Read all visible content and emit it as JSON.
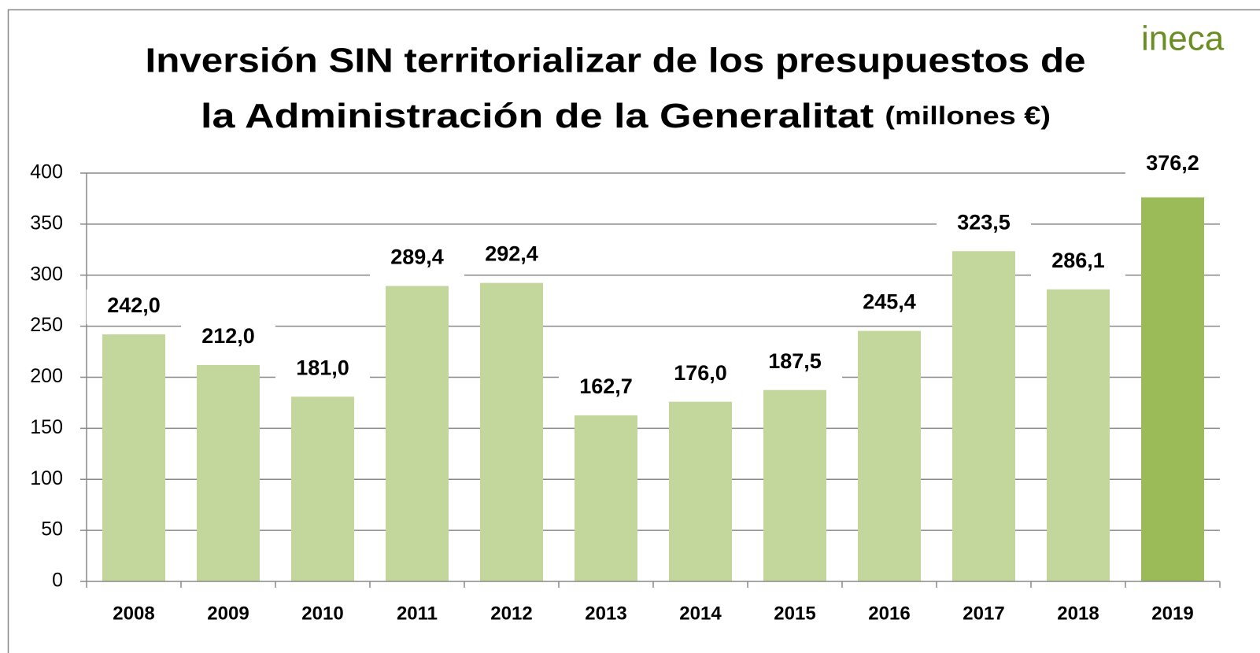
{
  "chart_data": {
    "type": "bar",
    "title": [
      "Inversión SIN territorializar de los presupuestos de",
      "la Administración de la Generalitat"
    ],
    "subtitle": "(millones €)",
    "logo": "ineca",
    "categories": [
      "2008",
      "2009",
      "2010",
      "2011",
      "2012",
      "2013",
      "2014",
      "2015",
      "2016",
      "2017",
      "2018",
      "2019"
    ],
    "values": [
      242.0,
      212.0,
      181.0,
      289.4,
      292.4,
      162.7,
      176.0,
      187.5,
      245.4,
      323.5,
      286.1,
      376.2
    ],
    "value_labels": [
      "242,0",
      "212,0",
      "181,0",
      "289,4",
      "292,4",
      "162,7",
      "176,0",
      "187,5",
      "245,4",
      "323,5",
      "286,1",
      "376,2"
    ],
    "colors": [
      "#c3d69b",
      "#c3d69b",
      "#c3d69b",
      "#c3d69b",
      "#c3d69b",
      "#c3d69b",
      "#c3d69b",
      "#c3d69b",
      "#c3d69b",
      "#c3d69b",
      "#c3d69b",
      "#9bbb59"
    ],
    "ylim": [
      0,
      400
    ],
    "yticks": [
      0,
      50,
      100,
      150,
      200,
      250,
      300,
      350,
      400
    ],
    "grid": true
  }
}
